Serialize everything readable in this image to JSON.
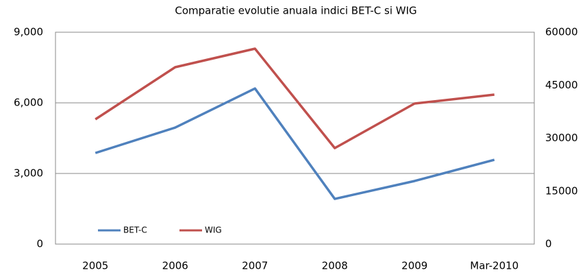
{
  "chart_data": {
    "type": "line",
    "title": "Comparatie evolutie anuala indici BET-C si WIG",
    "categories": [
      "2005",
      "2006",
      "2007",
      "2008",
      "2009",
      "Mar-2010"
    ],
    "series": [
      {
        "name": "BET-C",
        "color": "#4f81bd",
        "values": [
          3870,
          4950,
          6610,
          1920,
          2680,
          3580
        ]
      },
      {
        "name": "WIG",
        "color": "#c0504d",
        "axis": "y2",
        "values": [
          35340,
          50100,
          55340,
          27180,
          39800,
          42330
        ]
      }
    ],
    "ylim": [
      0,
      9000
    ],
    "yticks": [
      0,
      {
        "value": 3000,
        "label": "3,000"
      },
      {
        "value": 6000,
        "label": "6,000"
      },
      {
        "value": 9000,
        "label": "9,000"
      }
    ],
    "y2lim": [
      0,
      60000
    ],
    "y2ticks": [
      0,
      15000,
      30000,
      45000,
      60000
    ],
    "grid": true,
    "legend": "lower left"
  }
}
